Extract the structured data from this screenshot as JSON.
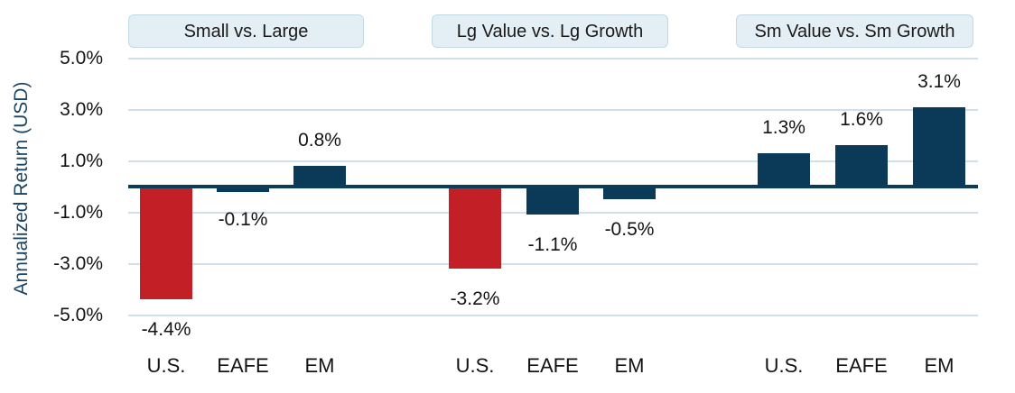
{
  "chart_data": {
    "type": "bar",
    "title": "",
    "ylabel": "Annualized Return (USD)",
    "unit": "percent",
    "ylim": [
      -5,
      5
    ],
    "grid": true,
    "legend": "none",
    "yticks": [
      5.0,
      3.0,
      1.0,
      -1.0,
      -3.0,
      -5.0
    ],
    "ytick_labels": [
      "5.0%",
      "3.0%",
      "1.0%",
      "-1.0%",
      "-3.0%",
      "-5.0%"
    ],
    "palette": {
      "bar_navy": "#0a3a58",
      "bar_red": "#c22026",
      "zero_line": "#0c3c5a",
      "gridline": "#cfe0eb",
      "header_bg": "#e4eef5",
      "header_border": "#c3d9e5",
      "axis_label_color": "#1c4564",
      "text_color": "#141414"
    },
    "groups": [
      {
        "label": "Small vs. Large",
        "categories": [
          "U.S.",
          "EAFE",
          "EM"
        ],
        "values": [
          -4.4,
          -0.1,
          0.8
        ],
        "value_labels": [
          "-4.4%",
          "-0.1%",
          "0.8%"
        ],
        "bar_colors": [
          "bar_red",
          "bar_navy",
          "bar_navy"
        ]
      },
      {
        "label": "Lg Value vs. Lg Growth",
        "categories": [
          "U.S.",
          "EAFE",
          "EM"
        ],
        "values": [
          -3.2,
          -1.1,
          -0.5
        ],
        "value_labels": [
          "-3.2%",
          "-1.1%",
          "-0.5%"
        ],
        "bar_colors": [
          "bar_red",
          "bar_navy",
          "bar_navy"
        ]
      },
      {
        "label": "Sm Value vs. Sm Growth",
        "categories": [
          "U.S.",
          "EAFE",
          "EM"
        ],
        "values": [
          1.3,
          1.6,
          3.1
        ],
        "value_labels": [
          "1.3%",
          "1.6%",
          "3.1%"
        ],
        "bar_colors": [
          "bar_navy",
          "bar_navy",
          "bar_navy"
        ]
      }
    ]
  }
}
